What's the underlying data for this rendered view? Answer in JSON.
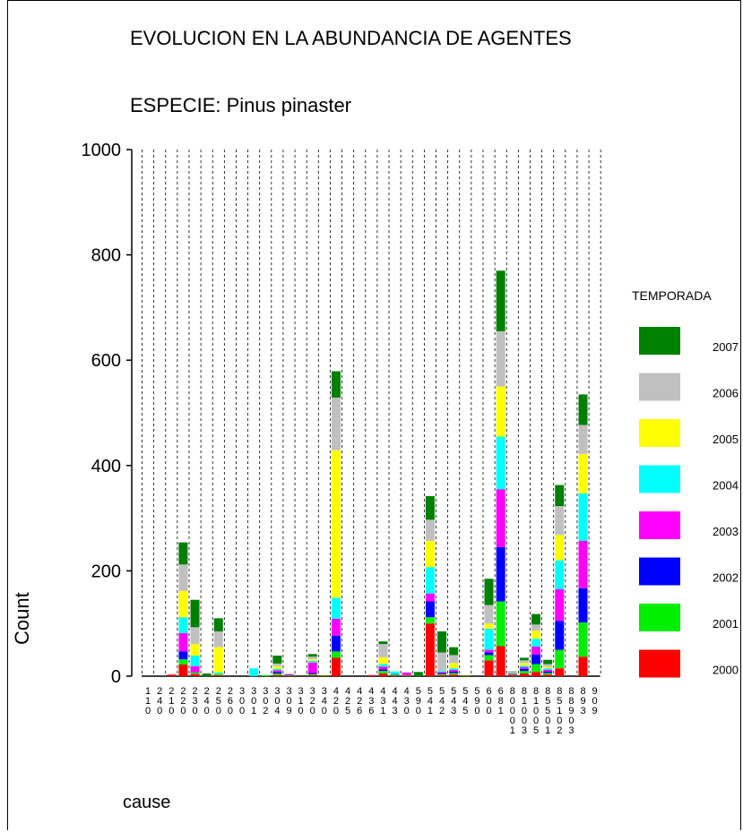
{
  "chart_data": {
    "type": "bar",
    "stacked": true,
    "title": "EVOLUCION EN LA ABUNDANCIA DE AGENTES",
    "subtitle": "ESPECIE: Pinus pinaster",
    "xlabel": "cause",
    "ylabel": "Count",
    "ylim": [
      0,
      1000
    ],
    "yticks": [
      0,
      200,
      400,
      600,
      800,
      1000
    ],
    "grid": "vertical dashed lines between categories",
    "legend": {
      "title": "TEMPORADA",
      "placement": "right"
    },
    "categories": [
      "110",
      "240",
      "210",
      "220",
      "230",
      "240",
      "250",
      "260",
      "300",
      "301",
      "302",
      "304",
      "309",
      "310",
      "320",
      "340",
      "420",
      "425",
      "426",
      "436",
      "431",
      "443",
      "430",
      "590",
      "541",
      "542",
      "543",
      "545",
      "590",
      "600",
      "681",
      "800",
      "813",
      "815",
      "855",
      "851",
      "892",
      "893",
      "909"
    ],
    "category_labels": [
      [
        "1",
        "1",
        "0"
      ],
      [
        "2",
        "4",
        "0"
      ],
      [
        "2",
        "1",
        "0"
      ],
      [
        "2",
        "2",
        "0"
      ],
      [
        "2",
        "3",
        "0"
      ],
      [
        "2",
        "4",
        "0"
      ],
      [
        "2",
        "5",
        "0"
      ],
      [
        "2",
        "6",
        "0"
      ],
      [
        "3",
        "0",
        "0"
      ],
      [
        "3",
        "0",
        "1"
      ],
      [
        "3",
        "0",
        "2"
      ],
      [
        "3",
        "0",
        "4"
      ],
      [
        "3",
        "0",
        "9"
      ],
      [
        "3",
        "1",
        "0"
      ],
      [
        "3",
        "2",
        "0"
      ],
      [
        "3",
        "4",
        "0"
      ],
      [
        "4",
        "2",
        "0"
      ],
      [
        "4",
        "2",
        "5"
      ],
      [
        "4",
        "2",
        "6"
      ],
      [
        "4",
        "3",
        "6"
      ],
      [
        "4",
        "3",
        "1"
      ],
      [
        "4",
        "4",
        "3"
      ],
      [
        "4",
        "3",
        "0"
      ],
      [
        "5",
        "9",
        "0"
      ],
      [
        "5",
        "4",
        "1"
      ],
      [
        "5",
        "4",
        "2"
      ],
      [
        "5",
        "4",
        "3"
      ],
      [
        "5",
        "4",
        "5"
      ],
      [
        "5",
        "9",
        "0"
      ],
      [
        "6",
        "0",
        "0"
      ],
      [
        "6",
        "8",
        "1"
      ],
      [
        "8",
        "0",
        "0",
        "0",
        "1"
      ],
      [
        "8",
        "1",
        "0",
        "0",
        "3"
      ],
      [
        "8",
        "1",
        "0",
        "0",
        "5"
      ],
      [
        "8",
        "5",
        "5",
        "0",
        "1"
      ],
      [
        "8",
        "5",
        "1",
        "0",
        "2"
      ],
      [
        "8",
        "8",
        "9",
        "0",
        "3"
      ],
      [
        "8",
        "9",
        "3"
      ],
      [
        "9",
        "0",
        "9"
      ]
    ],
    "series": [
      {
        "name": "2000",
        "color": "#ff0000",
        "values": [
          0,
          0,
          3,
          22,
          4,
          0,
          2,
          0,
          0,
          0,
          0,
          2,
          1,
          0,
          2,
          1,
          35,
          0,
          0,
          2,
          5,
          1,
          1,
          0,
          100,
          2,
          3,
          1,
          0,
          30,
          57,
          2,
          5,
          8,
          3,
          15,
          0,
          37,
          0
        ]
      },
      {
        "name": "2001",
        "color": "#00ee00",
        "values": [
          0,
          0,
          0,
          10,
          3,
          0,
          2,
          0,
          0,
          0,
          2,
          3,
          1,
          0,
          2,
          1,
          12,
          0,
          0,
          0,
          5,
          2,
          1,
          0,
          12,
          2,
          3,
          1,
          0,
          10,
          85,
          1,
          5,
          15,
          3,
          35,
          0,
          65,
          0
        ]
      },
      {
        "name": "2002",
        "color": "#0000ff",
        "values": [
          0,
          0,
          0,
          15,
          0,
          0,
          0,
          0,
          0,
          0,
          0,
          3,
          1,
          0,
          2,
          0,
          30,
          0,
          0,
          0,
          3,
          1,
          0,
          0,
          30,
          2,
          3,
          0,
          0,
          5,
          103,
          1,
          4,
          18,
          3,
          55,
          0,
          65,
          0
        ]
      },
      {
        "name": "2003",
        "color": "#ff00ff",
        "values": [
          0,
          0,
          0,
          35,
          12,
          0,
          0,
          0,
          0,
          0,
          0,
          3,
          1,
          0,
          20,
          0,
          32,
          0,
          0,
          0,
          5,
          0,
          5,
          0,
          15,
          2,
          3,
          0,
          0,
          5,
          110,
          1,
          3,
          15,
          3,
          60,
          0,
          90,
          0
        ]
      },
      {
        "name": "2004",
        "color": "#00ffff",
        "values": [
          0,
          0,
          0,
          30,
          20,
          0,
          3,
          0,
          0,
          15,
          0,
          3,
          0,
          0,
          3,
          0,
          40,
          0,
          0,
          0,
          5,
          5,
          0,
          0,
          50,
          2,
          3,
          0,
          0,
          40,
          100,
          1,
          3,
          15,
          3,
          55,
          0,
          90,
          0
        ]
      },
      {
        "name": "2005",
        "color": "#ffff00",
        "values": [
          0,
          0,
          0,
          50,
          22,
          0,
          48,
          0,
          0,
          0,
          0,
          5,
          0,
          0,
          3,
          0,
          280,
          0,
          0,
          0,
          13,
          0,
          0,
          0,
          50,
          0,
          10,
          0,
          0,
          10,
          95,
          1,
          5,
          15,
          3,
          48,
          0,
          75,
          0
        ]
      },
      {
        "name": "2006",
        "color": "#c0c0c0",
        "values": [
          0,
          0,
          0,
          50,
          32,
          0,
          30,
          0,
          0,
          0,
          0,
          5,
          0,
          0,
          5,
          0,
          100,
          0,
          0,
          0,
          25,
          0,
          0,
          0,
          40,
          35,
          15,
          0,
          0,
          35,
          105,
          1,
          5,
          12,
          5,
          55,
          0,
          55,
          0
        ]
      },
      {
        "name": "2007",
        "color": "#008000",
        "values": [
          0,
          0,
          0,
          42,
          52,
          5,
          25,
          0,
          0,
          0,
          0,
          15,
          0,
          0,
          5,
          0,
          50,
          0,
          0,
          0,
          5,
          0,
          0,
          8,
          45,
          40,
          15,
          0,
          0,
          50,
          115,
          1,
          5,
          20,
          8,
          40,
          0,
          58,
          0
        ]
      }
    ]
  }
}
